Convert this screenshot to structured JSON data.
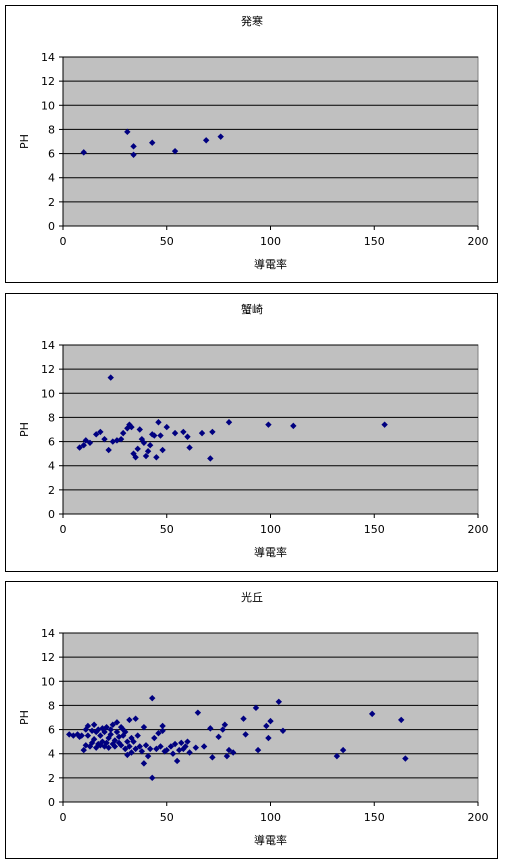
{
  "chart_data": [
    {
      "type": "scatter",
      "title": "発寒",
      "xlabel": "導電率",
      "ylabel": "PH",
      "xlim": [
        0,
        200
      ],
      "ylim": [
        0,
        14
      ],
      "xticks": [
        "0",
        "50",
        "100",
        "150",
        "200"
      ],
      "yticks": [
        "0",
        "2",
        "4",
        "6",
        "8",
        "10",
        "12",
        "14"
      ],
      "grid": "horizontal",
      "marker_color": "#000080",
      "plot_bg": "#c0c0c0",
      "points": [
        [
          10,
          6.1
        ],
        [
          31,
          7.8
        ],
        [
          34,
          6.6
        ],
        [
          34,
          5.9
        ],
        [
          43,
          6.9
        ],
        [
          54,
          6.2
        ],
        [
          69,
          7.1
        ],
        [
          76,
          7.4
        ]
      ]
    },
    {
      "type": "scatter",
      "title": "蟹崎",
      "xlabel": "導電率",
      "ylabel": "PH",
      "xlim": [
        0,
        200
      ],
      "ylim": [
        0,
        14
      ],
      "xticks": [
        "0",
        "50",
        "100",
        "150",
        "200"
      ],
      "yticks": [
        "0",
        "2",
        "4",
        "6",
        "8",
        "10",
        "12",
        "14"
      ],
      "grid": "horizontal",
      "marker_color": "#000080",
      "plot_bg": "#c0c0c0",
      "points": [
        [
          8,
          5.5
        ],
        [
          10,
          5.7
        ],
        [
          11,
          6.1
        ],
        [
          13,
          5.9
        ],
        [
          16,
          6.6
        ],
        [
          18,
          6.8
        ],
        [
          20,
          6.2
        ],
        [
          22,
          5.3
        ],
        [
          23,
          11.3
        ],
        [
          24,
          6.0
        ],
        [
          26,
          6.1
        ],
        [
          28,
          6.2
        ],
        [
          29,
          6.7
        ],
        [
          31,
          7.1
        ],
        [
          32,
          7.4
        ],
        [
          33,
          7.2
        ],
        [
          34,
          5.0
        ],
        [
          35,
          4.7
        ],
        [
          36,
          5.4
        ],
        [
          37,
          7.0
        ],
        [
          38,
          6.2
        ],
        [
          39,
          5.9
        ],
        [
          40,
          4.8
        ],
        [
          41,
          5.2
        ],
        [
          42,
          5.7
        ],
        [
          43,
          6.6
        ],
        [
          44,
          6.5
        ],
        [
          45,
          4.7
        ],
        [
          46,
          7.6
        ],
        [
          47,
          6.5
        ],
        [
          48,
          5.3
        ],
        [
          50,
          7.2
        ],
        [
          54,
          6.7
        ],
        [
          58,
          6.8
        ],
        [
          60,
          6.4
        ],
        [
          61,
          5.5
        ],
        [
          67,
          6.7
        ],
        [
          71,
          4.6
        ],
        [
          72,
          6.8
        ],
        [
          80,
          7.6
        ],
        [
          99,
          7.4
        ],
        [
          111,
          7.3
        ],
        [
          155,
          7.4
        ]
      ]
    },
    {
      "type": "scatter",
      "title": "光丘",
      "xlabel": "導電率",
      "ylabel": "PH",
      "xlim": [
        0,
        200
      ],
      "ylim": [
        0,
        14
      ],
      "xticks": [
        "0",
        "50",
        "100",
        "150",
        "200"
      ],
      "yticks": [
        "0",
        "2",
        "4",
        "6",
        "8",
        "10",
        "12",
        "14"
      ],
      "grid": "horizontal",
      "marker_color": "#000080",
      "plot_bg": "#c0c0c0",
      "points": [
        [
          3,
          5.6
        ],
        [
          5,
          5.5
        ],
        [
          7,
          5.6
        ],
        [
          8,
          5.4
        ],
        [
          9,
          5.5
        ],
        [
          10,
          4.3
        ],
        [
          11,
          6.0
        ],
        [
          11,
          4.7
        ],
        [
          12,
          6.3
        ],
        [
          12,
          5.5
        ],
        [
          13,
          4.6
        ],
        [
          14,
          5.9
        ],
        [
          14,
          4.9
        ],
        [
          15,
          6.4
        ],
        [
          15,
          5.2
        ],
        [
          16,
          4.5
        ],
        [
          16,
          5.8
        ],
        [
          17,
          6.0
        ],
        [
          17,
          4.8
        ],
        [
          18,
          5.5
        ],
        [
          18,
          4.7
        ],
        [
          19,
          6.1
        ],
        [
          19,
          5.0
        ],
        [
          20,
          4.6
        ],
        [
          20,
          5.8
        ],
        [
          21,
          6.2
        ],
        [
          21,
          4.9
        ],
        [
          22,
          5.3
        ],
        [
          22,
          4.5
        ],
        [
          23,
          6.0
        ],
        [
          23,
          5.6
        ],
        [
          24,
          4.8
        ],
        [
          24,
          6.4
        ],
        [
          25,
          5.1
        ],
        [
          25,
          4.6
        ],
        [
          26,
          5.8
        ],
        [
          26,
          6.6
        ],
        [
          27,
          4.9
        ],
        [
          27,
          5.4
        ],
        [
          28,
          6.2
        ],
        [
          28,
          4.7
        ],
        [
          29,
          5.5
        ],
        [
          29,
          6.0
        ],
        [
          30,
          4.4
        ],
        [
          30,
          5.8
        ],
        [
          31,
          5.0
        ],
        [
          31,
          3.9
        ],
        [
          32,
          6.8
        ],
        [
          32,
          4.6
        ],
        [
          33,
          5.3
        ],
        [
          33,
          4.1
        ],
        [
          34,
          5.0
        ],
        [
          35,
          6.9
        ],
        [
          35,
          4.4
        ],
        [
          36,
          5.5
        ],
        [
          37,
          4.6
        ],
        [
          38,
          4.2
        ],
        [
          39,
          6.2
        ],
        [
          39,
          3.2
        ],
        [
          40,
          4.7
        ],
        [
          41,
          3.8
        ],
        [
          42,
          4.4
        ],
        [
          43,
          8.6
        ],
        [
          43,
          2.0
        ],
        [
          44,
          5.3
        ],
        [
          45,
          4.4
        ],
        [
          46,
          5.7
        ],
        [
          47,
          4.6
        ],
        [
          48,
          6.3
        ],
        [
          48,
          5.9
        ],
        [
          49,
          4.2
        ],
        [
          50,
          4.3
        ],
        [
          52,
          4.6
        ],
        [
          53,
          4.0
        ],
        [
          54,
          4.8
        ],
        [
          55,
          3.4
        ],
        [
          56,
          4.3
        ],
        [
          57,
          4.9
        ],
        [
          58,
          4.4
        ],
        [
          59,
          4.6
        ],
        [
          60,
          5.0
        ],
        [
          61,
          4.1
        ],
        [
          64,
          4.5
        ],
        [
          65,
          7.4
        ],
        [
          68,
          4.6
        ],
        [
          71,
          6.1
        ],
        [
          72,
          3.7
        ],
        [
          75,
          5.4
        ],
        [
          77,
          6.0
        ],
        [
          78,
          6.4
        ],
        [
          79,
          3.8
        ],
        [
          80,
          4.3
        ],
        [
          82,
          4.1
        ],
        [
          87,
          6.9
        ],
        [
          88,
          5.6
        ],
        [
          93,
          7.8
        ],
        [
          94,
          4.3
        ],
        [
          98,
          6.3
        ],
        [
          99,
          5.3
        ],
        [
          100,
          6.7
        ],
        [
          104,
          8.3
        ],
        [
          106,
          5.9
        ],
        [
          132,
          3.8
        ],
        [
          135,
          4.3
        ],
        [
          149,
          7.3
        ],
        [
          163,
          6.8
        ],
        [
          165,
          3.6
        ]
      ]
    }
  ]
}
